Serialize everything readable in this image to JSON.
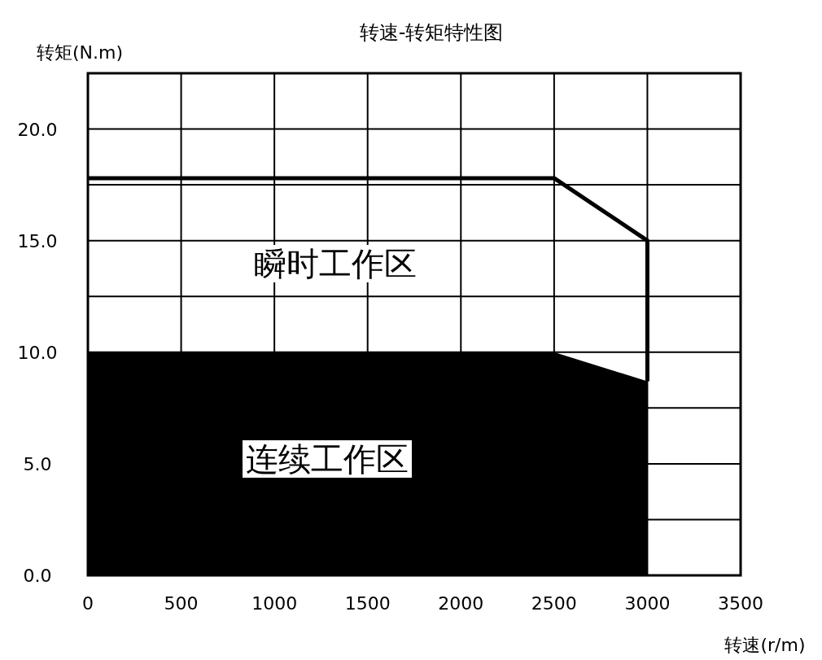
{
  "chart_data": {
    "type": "line",
    "title": "转速-转矩特性图",
    "xlabel": "转速(r/m)",
    "ylabel": "转矩(N.m)",
    "xlim": [
      0,
      3500
    ],
    "xticks": [
      0,
      500,
      1000,
      1500,
      2000,
      2500,
      3000,
      3500
    ],
    "ylim": [
      0,
      22.5
    ],
    "yticks": [
      {
        "value": 0,
        "label": "0.0"
      },
      {
        "value": 2.5,
        "label": null
      },
      {
        "value": 5,
        "label": "5.0"
      },
      {
        "value": 7.5,
        "label": null
      },
      {
        "value": 10,
        "label": "10.0"
      },
      {
        "value": 12.5,
        "label": null
      },
      {
        "value": 15,
        "label": "15.0"
      },
      {
        "value": 17.5,
        "label": null
      },
      {
        "value": 20,
        "label": "20.0"
      }
    ],
    "grid": true,
    "series": [
      {
        "type": "area",
        "color": "#000000",
        "x": [
          0,
          2500,
          3000,
          3000
        ],
        "values": [
          10,
          10,
          8.7,
          0
        ]
      },
      {
        "color": "#000000",
        "x": [
          0,
          2500,
          3000,
          3000
        ],
        "values": [
          17.8,
          17.8,
          15,
          8.7
        ]
      }
    ],
    "annotations": [
      "瞬时工作区",
      "连续工作区"
    ]
  }
}
